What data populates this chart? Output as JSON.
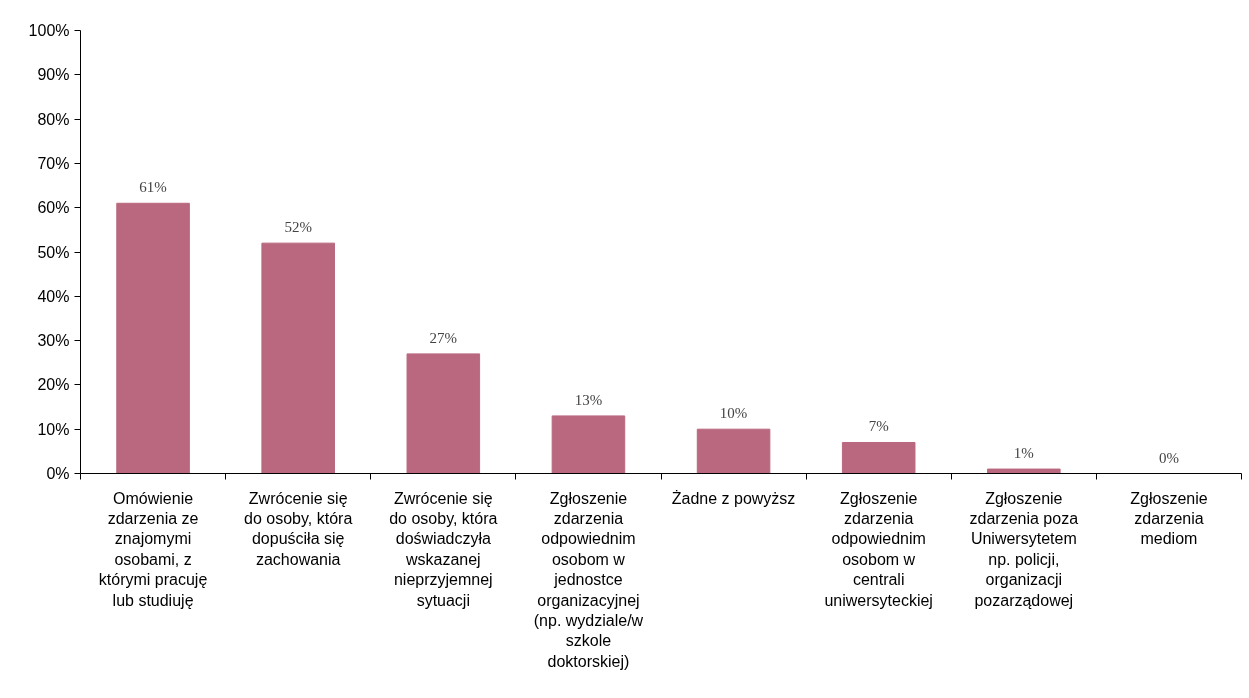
{
  "chart_data": {
    "type": "bar",
    "categories": [
      "Omówienie zdarzenia ze znajomymi osobami, z którymi pracuję lub studiuję",
      "Zwrócenie się do osoby, która dopuściła się zachowania",
      "Zwrócenie się do osoby, która doświadczyła wskazanej nieprzyjemnej sytuacji",
      "Zgłoszenie zdarzenia odpowiednim osobom w jednostce organizacyjnej (np. wydziale/w szkole doktorskiej)",
      "Żadne z powyższ",
      "Zgłoszenie zdarzenia odpowiednim osobom w centrali uniwersyteckiej",
      "Zgłoszenie zdarzenia poza Uniwersytetem np. policji, organizacji pozarządowej",
      "Zgłoszenie zdarzenia mediom"
    ],
    "values": [
      61,
      52,
      27,
      13,
      10,
      7,
      1,
      0
    ],
    "value_labels": [
      "61%",
      "52%",
      "27%",
      "13%",
      "10%",
      "7%",
      "1%",
      "0%"
    ],
    "color": "#b9687f",
    "ylim": [
      0,
      100
    ],
    "yticks": [
      {
        "value": 0,
        "label": "0%"
      },
      {
        "value": 10,
        "label": "10%"
      },
      {
        "value": 20,
        "label": "20%"
      },
      {
        "value": 30,
        "label": "30%"
      },
      {
        "value": 40,
        "label": "40%"
      },
      {
        "value": 50,
        "label": "50%"
      },
      {
        "value": 60,
        "label": "60%"
      },
      {
        "value": 70,
        "label": "70%"
      },
      {
        "value": 80,
        "label": "80%"
      },
      {
        "value": 90,
        "label": "90%"
      },
      {
        "value": 100,
        "label": "100%"
      }
    ],
    "grid": false
  }
}
